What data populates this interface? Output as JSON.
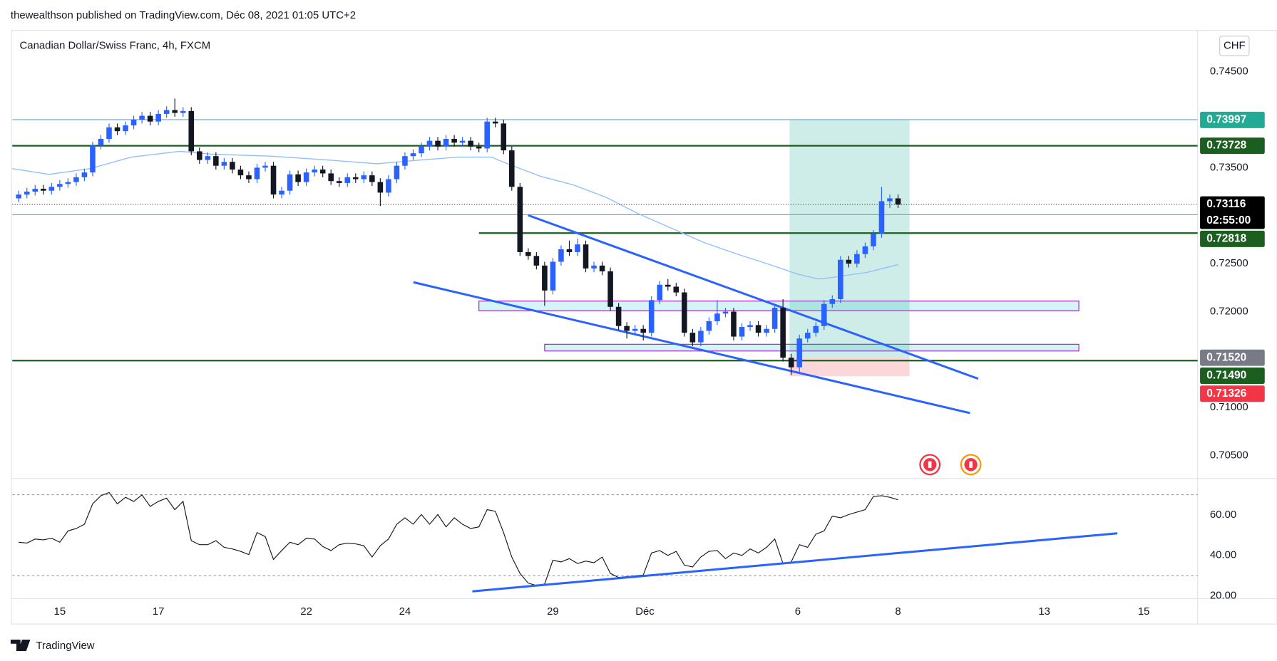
{
  "header": "thewealthson published on TradingView.com, Déc 08, 2021 01:05 UTC+2",
  "footer": "TradingView",
  "chart_data": [
    {
      "type": "candlestick",
      "title": "Canadian Dollar/Swiss Franc, 4h, FXCM",
      "currency": "CHF",
      "up_color": "#2962ff",
      "down_color": "#131722",
      "x": [
        -5,
        -4,
        -3,
        -2,
        -1,
        0,
        1,
        2,
        3,
        4,
        5,
        6,
        7,
        8,
        9,
        10,
        11,
        12,
        13,
        14,
        15,
        16,
        17,
        18,
        19,
        20,
        21,
        22,
        23,
        24,
        25,
        26,
        27,
        28,
        29,
        30,
        31,
        32,
        33,
        34,
        35,
        36,
        37,
        38,
        39,
        40,
        41,
        42,
        43,
        44,
        45,
        46,
        47,
        48,
        49,
        50,
        51,
        52,
        53,
        54,
        55,
        56,
        57,
        58,
        59,
        60,
        61,
        62,
        63,
        64,
        65,
        66,
        67,
        68,
        69,
        70,
        71,
        72,
        73,
        74,
        75,
        76,
        77,
        78,
        79,
        80,
        81,
        82,
        83,
        84,
        85,
        86,
        87,
        88,
        89,
        90,
        91,
        92,
        93,
        94,
        95,
        96,
        97,
        98,
        99,
        100,
        101,
        102
      ],
      "open": [
        0.7318,
        0.7322,
        0.7325,
        0.7328,
        0.7326,
        0.733,
        0.7333,
        0.7335,
        0.734,
        0.7345,
        0.7373,
        0.738,
        0.7392,
        0.7388,
        0.7394,
        0.74,
        0.7404,
        0.7398,
        0.7406,
        0.741,
        0.7407,
        0.7409,
        0.7367,
        0.7358,
        0.7362,
        0.7352,
        0.7356,
        0.7348,
        0.7342,
        0.7338,
        0.735,
        0.7352,
        0.7322,
        0.7326,
        0.7343,
        0.7335,
        0.7345,
        0.7348,
        0.7344,
        0.7336,
        0.7334,
        0.734,
        0.7338,
        0.7342,
        0.7335,
        0.7324,
        0.7338,
        0.7352,
        0.7362,
        0.7365,
        0.7372,
        0.7378,
        0.7372,
        0.738,
        0.7376,
        0.7378,
        0.7372,
        0.737,
        0.7398,
        0.7396,
        0.7368,
        0.733,
        0.7262,
        0.7258,
        0.7248,
        0.7222,
        0.7252,
        0.7265,
        0.7262,
        0.727,
        0.7245,
        0.7248,
        0.7242,
        0.7205,
        0.7185,
        0.718,
        0.7182,
        0.7178,
        0.7212,
        0.7228,
        0.7226,
        0.722,
        0.7178,
        0.7168,
        0.718,
        0.719,
        0.7198,
        0.72,
        0.7174,
        0.7184,
        0.7186,
        0.7178,
        0.7182,
        0.7204,
        0.7152,
        0.7142,
        0.7172,
        0.7178,
        0.7185,
        0.7208,
        0.7213,
        0.7254,
        0.725,
        0.726,
        0.7268,
        0.7281,
        0.7315,
        0.7318
      ],
      "high": [
        0.7326,
        0.7329,
        0.7332,
        0.7332,
        0.7334,
        0.7337,
        0.7339,
        0.7344,
        0.7349,
        0.7377,
        0.7384,
        0.7396,
        0.7396,
        0.7398,
        0.7404,
        0.7408,
        0.7408,
        0.741,
        0.7414,
        0.7422,
        0.7413,
        0.7413,
        0.7371,
        0.7366,
        0.7366,
        0.736,
        0.736,
        0.7352,
        0.7346,
        0.7354,
        0.7356,
        0.7356,
        0.733,
        0.7347,
        0.7347,
        0.7349,
        0.7352,
        0.7352,
        0.7348,
        0.734,
        0.7344,
        0.7344,
        0.7346,
        0.7346,
        0.7339,
        0.7342,
        0.7356,
        0.7366,
        0.7369,
        0.7376,
        0.7382,
        0.7382,
        0.7384,
        0.7384,
        0.7382,
        0.7382,
        0.7376,
        0.7402,
        0.7402,
        0.74,
        0.7372,
        0.7334,
        0.7266,
        0.7262,
        0.7252,
        0.7256,
        0.7269,
        0.7274,
        0.7276,
        0.7274,
        0.7252,
        0.7252,
        0.7246,
        0.7209,
        0.7189,
        0.7186,
        0.7186,
        0.7216,
        0.7232,
        0.7234,
        0.723,
        0.7224,
        0.7182,
        0.7184,
        0.7194,
        0.7212,
        0.7204,
        0.7204,
        0.7188,
        0.719,
        0.719,
        0.7186,
        0.7208,
        0.7213,
        0.7156,
        0.7176,
        0.7182,
        0.7189,
        0.7212,
        0.7217,
        0.7258,
        0.7258,
        0.7264,
        0.7272,
        0.7285,
        0.733,
        0.7322,
        0.7322
      ],
      "low": [
        0.7314,
        0.7318,
        0.7321,
        0.7322,
        0.7322,
        0.7326,
        0.7329,
        0.7331,
        0.7336,
        0.7341,
        0.7369,
        0.7376,
        0.7384,
        0.7384,
        0.739,
        0.7396,
        0.7394,
        0.7394,
        0.7402,
        0.7403,
        0.7403,
        0.7363,
        0.7354,
        0.7354,
        0.7348,
        0.7348,
        0.7344,
        0.7338,
        0.7334,
        0.7334,
        0.7346,
        0.7318,
        0.7318,
        0.7322,
        0.7331,
        0.7331,
        0.7341,
        0.734,
        0.7332,
        0.733,
        0.733,
        0.7334,
        0.7334,
        0.7331,
        0.731,
        0.732,
        0.7334,
        0.7348,
        0.7358,
        0.7361,
        0.7368,
        0.7368,
        0.7368,
        0.7372,
        0.7372,
        0.7368,
        0.7366,
        0.7366,
        0.7392,
        0.7364,
        0.7326,
        0.7258,
        0.7254,
        0.7244,
        0.7206,
        0.7218,
        0.7248,
        0.7258,
        0.7258,
        0.7241,
        0.7241,
        0.7238,
        0.7201,
        0.7181,
        0.7172,
        0.7176,
        0.717,
        0.7174,
        0.7208,
        0.7222,
        0.7216,
        0.7174,
        0.7164,
        0.7164,
        0.7176,
        0.7186,
        0.7194,
        0.717,
        0.717,
        0.718,
        0.7174,
        0.7174,
        0.7178,
        0.7148,
        0.7134,
        0.7136,
        0.7168,
        0.7174,
        0.7181,
        0.7204,
        0.7209,
        0.7246,
        0.7246,
        0.7256,
        0.7264,
        0.7277,
        0.7308,
        0.7308
      ],
      "close": [
        0.7322,
        0.7325,
        0.7328,
        0.7326,
        0.733,
        0.7333,
        0.7335,
        0.734,
        0.7345,
        0.7373,
        0.738,
        0.7392,
        0.7388,
        0.7394,
        0.74,
        0.7404,
        0.7398,
        0.7406,
        0.741,
        0.7407,
        0.7409,
        0.7367,
        0.7358,
        0.7362,
        0.7352,
        0.7356,
        0.7348,
        0.7342,
        0.7338,
        0.735,
        0.7352,
        0.7322,
        0.7326,
        0.7343,
        0.7335,
        0.7345,
        0.7348,
        0.7344,
        0.7336,
        0.7334,
        0.734,
        0.7338,
        0.7342,
        0.7335,
        0.7324,
        0.7338,
        0.7352,
        0.7362,
        0.7365,
        0.7372,
        0.7378,
        0.7372,
        0.738,
        0.7376,
        0.7378,
        0.7372,
        0.737,
        0.7398,
        0.7396,
        0.7368,
        0.733,
        0.7262,
        0.7258,
        0.7248,
        0.7222,
        0.7252,
        0.7265,
        0.7262,
        0.727,
        0.7245,
        0.7248,
        0.7242,
        0.7205,
        0.7185,
        0.718,
        0.7182,
        0.7178,
        0.7212,
        0.7228,
        0.7226,
        0.722,
        0.7178,
        0.7168,
        0.718,
        0.719,
        0.7198,
        0.72,
        0.7174,
        0.7184,
        0.7186,
        0.7178,
        0.7182,
        0.7204,
        0.7152,
        0.7142,
        0.7172,
        0.7178,
        0.7185,
        0.7208,
        0.7213,
        0.7254,
        0.725,
        0.726,
        0.7268,
        0.7281,
        0.7315,
        0.7318,
        0.73116
      ],
      "countdown": "02:55:00",
      "ma": {
        "color": "#90bff9",
        "x": [
          -5.8,
          -1.3,
          3.7,
          8.7,
          14.6,
          18.6,
          25.6,
          32.6,
          38.6,
          42.5,
          48.5,
          52.5,
          54.5,
          58.5,
          62.5,
          66.5,
          70.4,
          74.4,
          78.4,
          82.4,
          86.4,
          89.8,
          92.3,
          94.3,
          98.3,
          102
        ],
        "values": [
          0.7349,
          0.7343,
          0.7349,
          0.7361,
          0.7367,
          0.7364,
          0.7362,
          0.7358,
          0.7354,
          0.7357,
          0.7361,
          0.7361,
          0.7354,
          0.7341,
          0.7332,
          0.7319,
          0.7302,
          0.7287,
          0.7272,
          0.726,
          0.7249,
          0.7239,
          0.7234,
          0.7236,
          0.7241,
          0.7249
        ]
      },
      "levels": [
        {
          "value": 0.74,
          "color": "#5fa8e8",
          "width": 1
        },
        {
          "value": 0.7301,
          "color": "#5fa8e8",
          "width": 1
        },
        {
          "value": 0.73728,
          "color": "#1b5e20",
          "width": 2,
          "tag": true
        },
        {
          "value": 0.72818,
          "color": "#1b5e20",
          "width": 2,
          "tag": true,
          "x_from": 51
        },
        {
          "value": 0.7149,
          "color": "#1b5e20",
          "width": 2,
          "label": "0.71490"
        }
      ],
      "position": {
        "target": 0.73997,
        "entry": {
          "value": 0.7152,
          "label": "0.71520"
        },
        "stop": 0.71326,
        "x_from": 88.8,
        "x_to": 103.4,
        "target_color": "#22ab94",
        "entry_color": "#787b86",
        "stop_color": "#f23645"
      },
      "zones": [
        {
          "from": 0.7201,
          "to": 0.7211,
          "x_from": 51,
          "x_to": 124
        },
        {
          "from": 0.7159,
          "to": 0.7166,
          "x_from": 59,
          "x_to": 124
        }
      ],
      "xlim": [
        -5.78,
        138.45
      ],
      "ylim": [
        0.7027,
        0.7493
      ],
      "yticks": [
        {
          "value": 0.745,
          "label": "0.74500"
        },
        {
          "value": 0.735,
          "label": "0.73500"
        },
        {
          "value": 0.725,
          "label": "0.72500"
        },
        {
          "value": 0.72,
          "label": "0.72000"
        },
        {
          "value": 0.71,
          "label": "0.71000"
        },
        {
          "value": 0.705,
          "label": "0.70500"
        }
      ]
    },
    {
      "type": "line",
      "color": "#131722",
      "x": [
        -5,
        -4,
        -3,
        -2,
        -1,
        0,
        1,
        2,
        3,
        4,
        5,
        6,
        7,
        8,
        9,
        10,
        11,
        12,
        13,
        14,
        15,
        16,
        17,
        18,
        19,
        20,
        21,
        22,
        23,
        24,
        25,
        26,
        27,
        28,
        29,
        30,
        31,
        32,
        33,
        34,
        35,
        36,
        37,
        38,
        39,
        40,
        41,
        42,
        43,
        44,
        45,
        46,
        47,
        48,
        49,
        50,
        51,
        52,
        53,
        54,
        55,
        56,
        57,
        58,
        59,
        60,
        61,
        62,
        63,
        64,
        65,
        66,
        67,
        68,
        69,
        70,
        71,
        72,
        73,
        74,
        75,
        76,
        77,
        78,
        79,
        80,
        81,
        82,
        83,
        84,
        85,
        86,
        87,
        88,
        89,
        90,
        91,
        92,
        93,
        94,
        95,
        96,
        97,
        98,
        99,
        100,
        101,
        102
      ],
      "values": [
        46.5,
        46.1,
        48.1,
        47.7,
        48.5,
        46.5,
        52.1,
        53.3,
        55.4,
        65.5,
        69.5,
        71.1,
        65.5,
        68.7,
        66.7,
        69.9,
        64.2,
        66.7,
        68.3,
        62.6,
        66.7,
        47.3,
        45.3,
        45.3,
        47.3,
        44.0,
        43.2,
        42.0,
        40.4,
        51.3,
        49.3,
        38.0,
        42.4,
        46.5,
        45.3,
        48.5,
        48.1,
        44.4,
        42.4,
        45.3,
        46.1,
        45.7,
        44.8,
        39.2,
        44.8,
        48.1,
        55.4,
        58.6,
        55.4,
        60.2,
        55.4,
        60.2,
        54.1,
        58.6,
        55.4,
        53.3,
        54.1,
        62.6,
        61.8,
        51.3,
        39.2,
        31.1,
        26.3,
        25.1,
        25.9,
        37.6,
        36.8,
        38.4,
        36.0,
        37.2,
        36.4,
        39.2,
        31.1,
        29.1,
        29.5,
        29.9,
        30.3,
        41.2,
        42.4,
        40.0,
        42.0,
        35.2,
        34.3,
        39.2,
        42.0,
        42.4,
        38.4,
        41.2,
        40.0,
        43.2,
        41.2,
        44.0,
        48.1,
        36.0,
        36.8,
        45.3,
        44.0,
        50.5,
        52.1,
        59.4,
        58.6,
        60.2,
        61.4,
        62.6,
        69.1,
        69.5,
        68.7,
        67.5
      ],
      "levels": [
        70,
        30
      ],
      "xlim": [
        -5.78,
        138.45
      ],
      "ylim": [
        19.0,
        77.6
      ],
      "yticks": [
        {
          "value": 60,
          "label": "60.00"
        },
        {
          "value": 40,
          "label": "40.00"
        },
        {
          "value": 20,
          "label": "20.00"
        }
      ],
      "xticks": [
        {
          "value": 0,
          "label": "15"
        },
        {
          "value": 12,
          "label": "17"
        },
        {
          "value": 30,
          "label": "22"
        },
        {
          "value": 42,
          "label": "24"
        },
        {
          "value": 60,
          "label": "29"
        },
        {
          "value": 71.2,
          "label": "Déc"
        },
        {
          "value": 89.8,
          "label": "6"
        },
        {
          "value": 102,
          "label": "8"
        },
        {
          "value": 119.8,
          "label": "13"
        },
        {
          "value": 131.9,
          "label": "15"
        }
      ]
    }
  ]
}
